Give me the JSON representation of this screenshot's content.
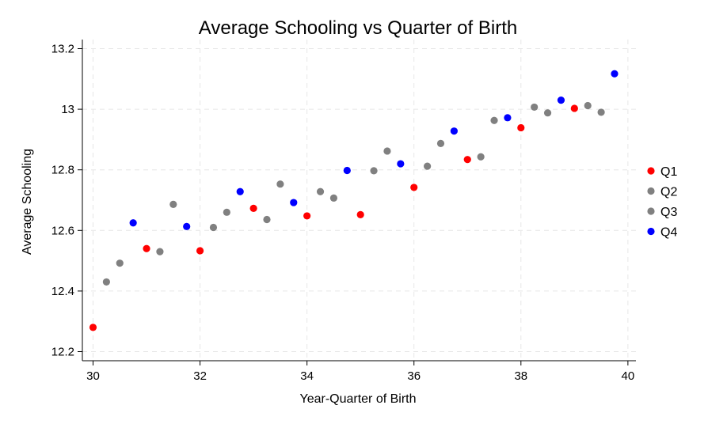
{
  "chart_data": {
    "type": "scatter",
    "title": "Average Schooling vs Quarter of Birth",
    "xlabel": "Year-Quarter of Birth",
    "ylabel": "Average Schooling",
    "xlim": [
      29.8,
      40.15
    ],
    "ylim": [
      12.17,
      13.23
    ],
    "xticks": [
      "30",
      "32",
      "34",
      "36",
      "38",
      "40"
    ],
    "yticks": [
      "12.2",
      "12.4",
      "12.6",
      "12.8",
      "13",
      "13.2"
    ],
    "grid": true,
    "legend_position": "right",
    "series": [
      {
        "name": "Q1",
        "color": "#ff0000",
        "points": [
          [
            30.0,
            12.28
          ],
          [
            31.0,
            12.54
          ],
          [
            32.0,
            12.533
          ],
          [
            33.0,
            12.673
          ],
          [
            34.0,
            12.648
          ],
          [
            35.0,
            12.652
          ],
          [
            36.0,
            12.742
          ],
          [
            37.0,
            12.834
          ],
          [
            38.0,
            12.939
          ],
          [
            39.0,
            13.003
          ]
        ]
      },
      {
        "name": "Q2",
        "color": "#808080",
        "points": [
          [
            30.25,
            12.43
          ],
          [
            31.25,
            12.53
          ],
          [
            32.25,
            12.61
          ],
          [
            33.25,
            12.636
          ],
          [
            34.25,
            12.728
          ],
          [
            35.25,
            12.797
          ],
          [
            36.25,
            12.812
          ],
          [
            37.25,
            12.843
          ],
          [
            38.25,
            13.007
          ],
          [
            39.25,
            13.012
          ]
        ]
      },
      {
        "name": "Q3",
        "color": "#808080",
        "points": [
          [
            30.5,
            12.492
          ],
          [
            31.5,
            12.686
          ],
          [
            32.5,
            12.66
          ],
          [
            33.5,
            12.753
          ],
          [
            34.5,
            12.707
          ],
          [
            35.5,
            12.862
          ],
          [
            36.5,
            12.887
          ],
          [
            37.5,
            12.963
          ],
          [
            38.5,
            12.988
          ],
          [
            39.5,
            12.99
          ]
        ]
      },
      {
        "name": "Q4",
        "color": "#0000ff",
        "points": [
          [
            30.75,
            12.625
          ],
          [
            31.75,
            12.613
          ],
          [
            32.75,
            12.728
          ],
          [
            33.75,
            12.692
          ],
          [
            34.75,
            12.798
          ],
          [
            35.75,
            12.82
          ],
          [
            36.75,
            12.928
          ],
          [
            37.75,
            12.972
          ],
          [
            38.75,
            13.03
          ],
          [
            39.75,
            13.117
          ]
        ]
      }
    ]
  }
}
